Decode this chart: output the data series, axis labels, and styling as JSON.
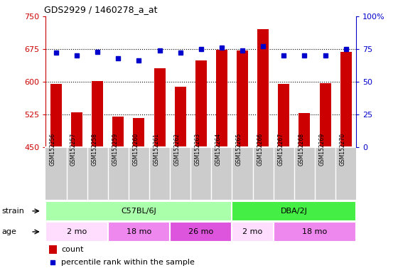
{
  "title": "GDS2929 / 1460278_a_at",
  "samples": [
    "GSM152256",
    "GSM152257",
    "GSM152258",
    "GSM152259",
    "GSM152260",
    "GSM152261",
    "GSM152262",
    "GSM152263",
    "GSM152264",
    "GSM152265",
    "GSM152266",
    "GSM152267",
    "GSM152268",
    "GSM152269",
    "GSM152270"
  ],
  "counts": [
    595,
    530,
    602,
    520,
    517,
    630,
    588,
    648,
    673,
    672,
    720,
    595,
    527,
    596,
    668
  ],
  "percentile_ranks": [
    72,
    70,
    73,
    68,
    66,
    74,
    72,
    75,
    76,
    74,
    77,
    70,
    70,
    70,
    75
  ],
  "ylim_left": [
    450,
    750
  ],
  "ylim_right": [
    0,
    100
  ],
  "yticks_left": [
    450,
    525,
    600,
    675,
    750
  ],
  "yticks_right": [
    0,
    25,
    50,
    75,
    100
  ],
  "bar_color": "#cc0000",
  "dot_color": "#0000cc",
  "axis_color_left": "#cc0000",
  "axis_color_right": "#0000cc",
  "strain_groups": [
    {
      "label": "C57BL/6J",
      "start": 0,
      "end": 9,
      "color": "#aaffaa"
    },
    {
      "label": "DBA/2J",
      "start": 9,
      "end": 15,
      "color": "#44ee44"
    }
  ],
  "age_groups": [
    {
      "label": "2 mo",
      "start": 0,
      "end": 3,
      "color": "#ffddff"
    },
    {
      "label": "18 mo",
      "start": 3,
      "end": 6,
      "color": "#ee88ee"
    },
    {
      "label": "26 mo",
      "start": 6,
      "end": 9,
      "color": "#dd55dd"
    },
    {
      "label": "2 mo",
      "start": 9,
      "end": 11,
      "color": "#ffddff"
    },
    {
      "label": "18 mo",
      "start": 11,
      "end": 15,
      "color": "#ee88ee"
    }
  ],
  "strain_label": "strain",
  "age_label": "age",
  "legend_count": "count",
  "legend_percentile": "percentile rank within the sample",
  "sample_bg_color": "#cccccc",
  "ytick_right_labels": [
    "0",
    "25",
    "50",
    "75",
    "100%"
  ]
}
